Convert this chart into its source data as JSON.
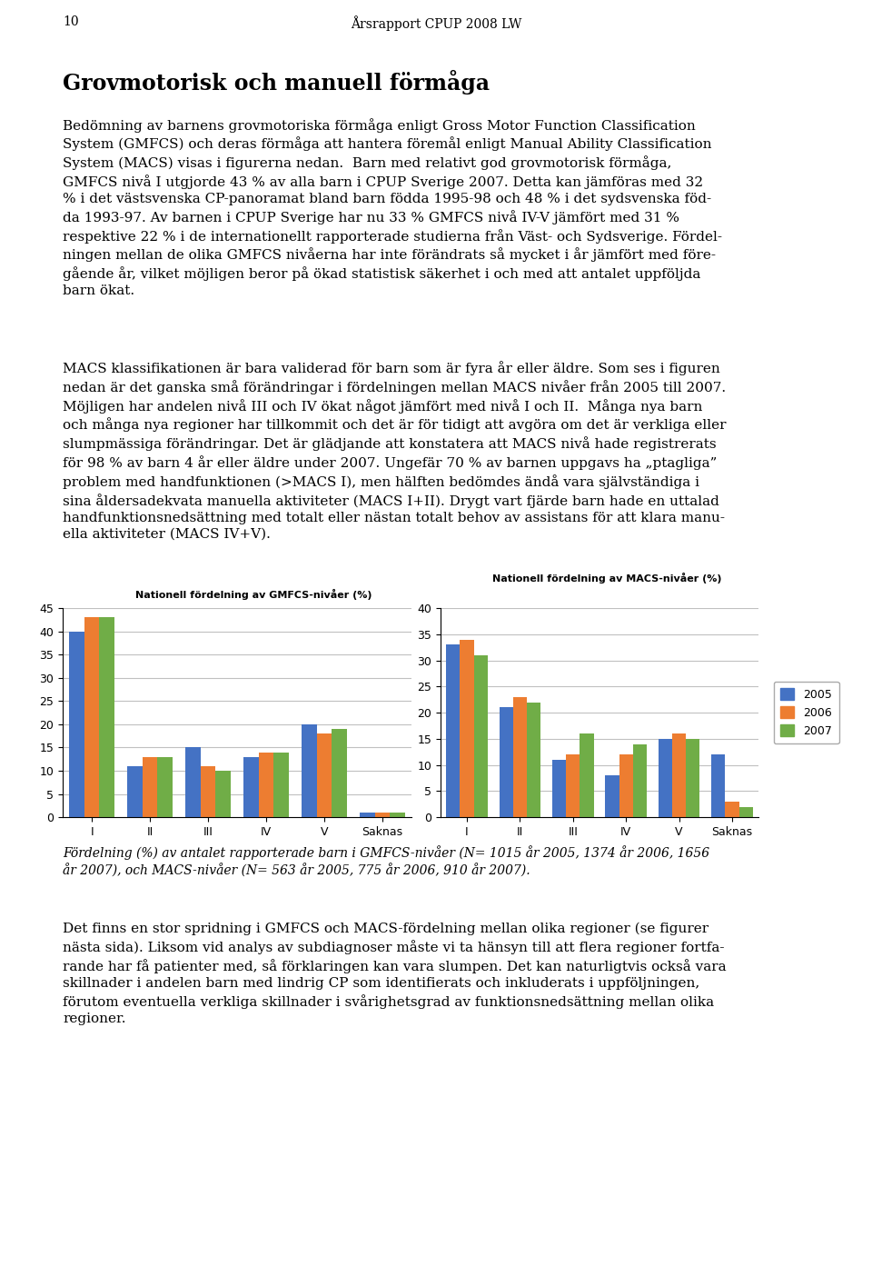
{
  "page_number": "10",
  "header_title": "Årsrapport CPUP 2008 LW",
  "main_title": "Grovmotorisk och manuell förmåga",
  "body1": "Bedömning av barnens grovmotoriska förmåga enligt Gross Motor Function Classification System (GMFCS) och deras förmåga att hantera föremål enligt Manual Ability Classification System (MACS) visas i figurerna nedan.  Barn med relativt god grovmotorisk förmåga, GMFCS nivå I utgjorde 43 % av alla barn i CPUP Sverige 2007. Detta kan jämföras med 32 % i det västsvenska CP-panoramat bland barn födda 1995-98 och 48 % i det sydsvenska föd-da 1993-97. Av barnen i CPUP Sverige har nu 33 % GMFCS nivå IV-V jämfört med 31 % respektive 22 % i de internationellt rapporterade studierna från Väst- och Sydsverige. Fördel-ningen mellan de olika GMFCS nivåerna har inte förändrats så mycket i år jämfört med före-gående år, vilket möjligen beror på ökad statistisk säkerhet i och med att antalet uppföljda barn ökat.",
  "body2": "MACS klassifikationen är bara validerad för barn som är fyra år eller äldre. Som ses i figuren nedan är det ganska små förändringar i fördelningen mellan MACS nivåer från 2005 till 2007. Möjligen har andelen nivå III och IV ökat något jämfört med nivå I och II.  Många nya barn och många nya regioner har tillkommit och det är för tidigt att avgöra om det är verkliga eller slumpmässiga förändringar. Det är glädjande att konstatera att MACS nivå hade registrerats för 98 % av barn 4 år eller äldre under 2007. Ungefär 70 % av barnen uppgavs ha „påtagliga” problem med handfunktionen (>MACS I), men hälften bedömdes ändå vara självständiga i sina åldersadekvata manuella aktiviteter (MACS I+II). Drygt vart fjärde barn hade en uttalad handfunktionsnedsättning med totalt eller nästan totalt behov av assistans för att klara manu-ella aktiviteter (MACS IV+V).",
  "gmfcs_title": "Nationell fördelning av GMFCS-nivåer (%)",
  "macs_title": "Nationell fördelning av MACS-nivåer (%)",
  "categories": [
    "I",
    "II",
    "III",
    "IV",
    "V",
    "Saknas"
  ],
  "gmfcs_2005": [
    40,
    11,
    15,
    13,
    20,
    1
  ],
  "gmfcs_2006": [
    43,
    13,
    11,
    14,
    18,
    1
  ],
  "gmfcs_2007": [
    43,
    13,
    10,
    14,
    19,
    1
  ],
  "macs_2005": [
    33,
    21,
    11,
    8,
    15,
    12
  ],
  "macs_2006": [
    34,
    23,
    12,
    12,
    16,
    3
  ],
  "macs_2007": [
    31,
    22,
    16,
    14,
    15,
    2
  ],
  "gmfcs_ylim": [
    0,
    45
  ],
  "macs_ylim": [
    0,
    40
  ],
  "gmfcs_yticks": [
    0,
    5,
    10,
    15,
    20,
    25,
    30,
    35,
    40,
    45
  ],
  "macs_yticks": [
    0,
    5,
    10,
    15,
    20,
    25,
    30,
    35,
    40
  ],
  "color_2005": "#4472C4",
  "color_2006": "#ED7D31",
  "color_2007": "#70AD47",
  "legend_labels": [
    "2005",
    "2006",
    "2007"
  ],
  "caption": "Fördelning (%) av antalet rapporterade barn i GMFCS-nivåer (N= 1015 år 2005, 1374 år 2006, 1656 år 2007), och MACS-nivåer (N= 563 år 2005, 775 år 2006, 910 år 2007).",
  "bottom": "Det finns en stor spridning i GMFCS och MACS-fördelning mellan olika regioner (se figurer nästa sida). Liksom vid analys av subdiagnoser måste vi ta hänsyn till att flera regioner fortfarande har få patienter med, så förklaringen kan vara slumpen. Det kan naturligtvis också vara skillnader i andelen barn med lindrig CP som identifierats och inkluderats i uppföljningen, förutom eventuella verkliga skillnader i svårighetsgrad av funktionsnedsättning mellan olika regioner.",
  "background_color": "#FFFFFF"
}
